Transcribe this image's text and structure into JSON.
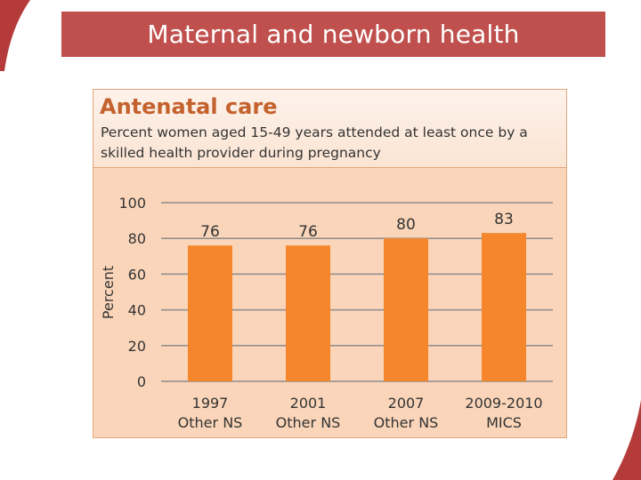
{
  "slide": {
    "title": "Maternal and newborn health"
  },
  "panel": {
    "title": "Antenatal care",
    "subtitle": "Percent women aged 15-49 years attended at least once by a skilled health provider during pregnancy"
  },
  "colors": {
    "accent": "#c0504d",
    "bar": "#f5862b",
    "panel_bg": "#fad5b9",
    "panel_title": "#c4622d",
    "gridline": "#8c8c8c"
  },
  "chart_data": {
    "type": "bar",
    "categories": [
      [
        "1997",
        "Other NS"
      ],
      [
        "2001",
        "Other NS"
      ],
      [
        "2007",
        "Other NS"
      ],
      [
        "2009-2010",
        "MICS"
      ]
    ],
    "values": [
      76,
      76,
      80,
      83
    ],
    "data_labels": [
      "76",
      "76",
      "80",
      "83"
    ],
    "ylabel": "Percent",
    "ylim": [
      0,
      100
    ],
    "yticks": [
      0,
      20,
      40,
      60,
      80,
      100
    ],
    "grid": true,
    "legend": "none"
  }
}
